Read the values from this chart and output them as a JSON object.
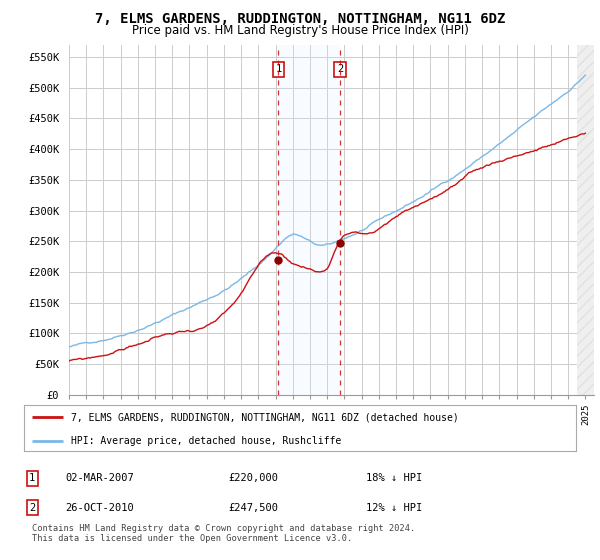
{
  "title": "7, ELMS GARDENS, RUDDINGTON, NOTTINGHAM, NG11 6DZ",
  "subtitle": "Price paid vs. HM Land Registry's House Price Index (HPI)",
  "title_fontsize": 10,
  "subtitle_fontsize": 8.5,
  "ylabel_ticks": [
    "£0",
    "£50K",
    "£100K",
    "£150K",
    "£200K",
    "£250K",
    "£300K",
    "£350K",
    "£400K",
    "£450K",
    "£500K",
    "£550K"
  ],
  "ytick_values": [
    0,
    50000,
    100000,
    150000,
    200000,
    250000,
    300000,
    350000,
    400000,
    450000,
    500000,
    550000
  ],
  "ylim": [
    0,
    570000
  ],
  "x_start_year": 1995,
  "x_end_year": 2025,
  "legend_line1": "7, ELMS GARDENS, RUDDINGTON, NOTTINGHAM, NG11 6DZ (detached house)",
  "legend_line2": "HPI: Average price, detached house, Rushcliffe",
  "transaction1_date": "02-MAR-2007",
  "transaction1_price": 220000,
  "transaction1_pct": "18% ↓ HPI",
  "transaction2_date": "26-OCT-2010",
  "transaction2_price": 247500,
  "transaction2_pct": "12% ↓ HPI",
  "footnote": "Contains HM Land Registry data © Crown copyright and database right 2024.\nThis data is licensed under the Open Government Licence v3.0.",
  "hpi_color": "#7ab8e8",
  "price_color": "#cc1111",
  "marker_color": "#8b0000",
  "vline_color": "#cc1111",
  "shade_color": "#ddeeff",
  "background_color": "#ffffff",
  "grid_color": "#cccccc"
}
